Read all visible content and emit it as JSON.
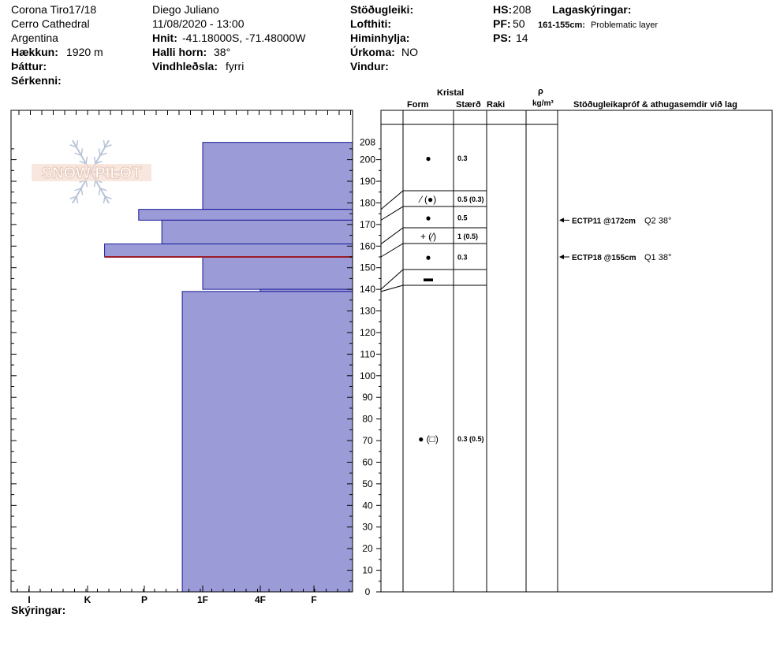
{
  "header": {
    "location": "Corona Tiro17/18",
    "area": "Cerro Cathedral",
    "country": "Argentina",
    "elevation_label": "Hækkun:",
    "elevation_value": "1920 m",
    "aspect_label": "Þáttur:",
    "features_label": "Sérkenni:",
    "observer": "Diego Juliano",
    "datetime": "11/08/2020 - 13:00",
    "coords_label": "Hnit:",
    "coords_value": "-41.18000S, -71.48000W",
    "slope_label": "Halli horn:",
    "slope_value": "38°",
    "wind_loading_label": "Vindhleðsla:",
    "wind_loading_value": "fyrri",
    "stability_label": "Stöðugleiki:",
    "air_temp_label": "Lofthiti:",
    "sky_label": "Himinhylja:",
    "precip_label": "Úrkoma:",
    "precip_value": "NO",
    "wind_label": "Vindur:",
    "hs_label": "HS:",
    "hs_value": "208",
    "pf_label": "PF:",
    "pf_value": "50",
    "ps_label": "PS:",
    "ps_value": "14",
    "layer_notes_label": "Lagaskýringar:",
    "layer_note_range": "161-155cm:",
    "layer_note_text": "Problematic layer"
  },
  "columns": {
    "kristal": "Kristal",
    "form": "Form",
    "size": "Stærð",
    "moisture": "Raki",
    "rho": "ρ",
    "density_unit": "kg/m³",
    "tests": "Stöðugleikapróf & athugasemdir við lag"
  },
  "logo_text": "SNOW PILOT",
  "footer": {
    "notes_label": "Skýringar:"
  },
  "colors": {
    "layer_fill": "#9b9bd8",
    "layer_stroke": "#1a1a9a",
    "problem_line": "#9b1c2a"
  },
  "chart_data": {
    "type": "snow-profile",
    "hs": 208,
    "y_axis_ticks": [
      208,
      200,
      190,
      180,
      170,
      160,
      150,
      140,
      130,
      120,
      110,
      100,
      90,
      80,
      70,
      60,
      50,
      40,
      30,
      20,
      10,
      0
    ],
    "hardness_scale": [
      "I",
      "K",
      "P",
      "1F",
      "4F",
      "F"
    ],
    "layers": [
      {
        "top": 208,
        "bottom": 177,
        "hardness": 3.0,
        "form": "●",
        "size": "0.3"
      },
      {
        "top": 177,
        "bottom": 172,
        "hardness": 1.9,
        "form": "⁄ (●)",
        "size": "0.5 (0.3)"
      },
      {
        "top": 172,
        "bottom": 161,
        "hardness": 2.3,
        "form": "●",
        "size": "0.5"
      },
      {
        "top": 161,
        "bottom": 155,
        "hardness": 1.3,
        "form": "+ (⁄)",
        "size": "1 (0.5)"
      },
      {
        "top": 155,
        "bottom": 140,
        "hardness": 3.0,
        "form": "●",
        "size": "0.3"
      },
      {
        "top": 140,
        "bottom": 139,
        "hardness": 4.0,
        "form": "▬",
        "size": ""
      },
      {
        "top": 139,
        "bottom": 0,
        "hardness": 2.65,
        "form": "● (□)",
        "size": "0.3 (0.5)"
      }
    ],
    "problem_layer_depth": 155,
    "tests": [
      {
        "depth": 172,
        "label": "ECTP11 @172cm",
        "extra": "Q2 38°"
      },
      {
        "depth": 155,
        "label": "ECTP18 @155cm",
        "extra": "Q1 38°"
      }
    ]
  }
}
